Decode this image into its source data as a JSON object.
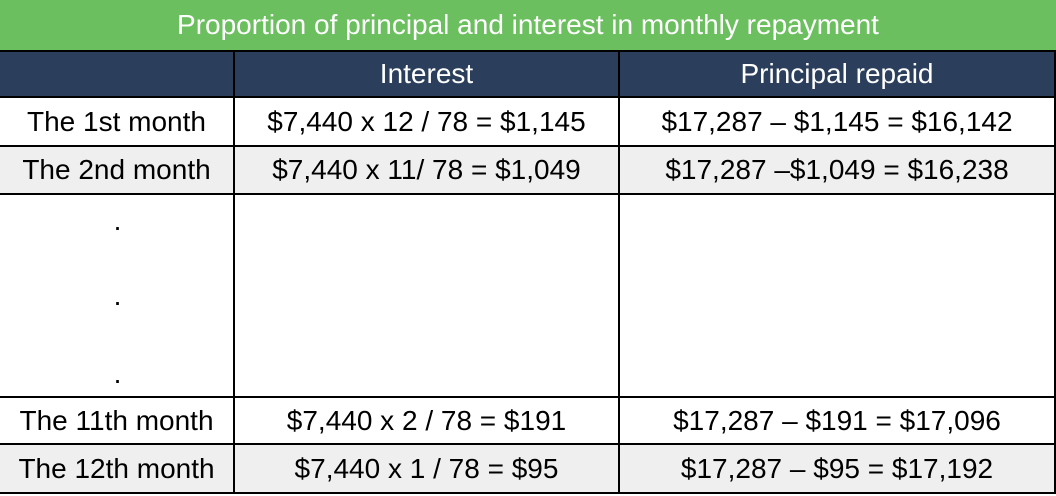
{
  "header": {
    "title": "Proportion of principal and interest in monthly repayment"
  },
  "table": {
    "columns": [
      "Interest",
      "Principal repaid"
    ],
    "rows": [
      [
        "The 1st month",
        "$7,440 x 12 / 78 = $1,145",
        "$17,287 – $1,145 = $16,142"
      ],
      [
        "The 2nd month",
        "$7,440 x 11/ 78 = $1,049",
        "$17,287 –$1,049 = $16,238"
      ],
      [
        "The 11th month",
        "$7,440 x 2 / 78 = $191",
        "$17,287 – $191 = $17,096"
      ],
      [
        "The 12th month",
        "$7,440 x 1 / 78 = $95",
        "$17,287 – $95 = $17,192"
      ]
    ],
    "ellipsis": [
      ".",
      ".",
      "."
    ]
  }
}
